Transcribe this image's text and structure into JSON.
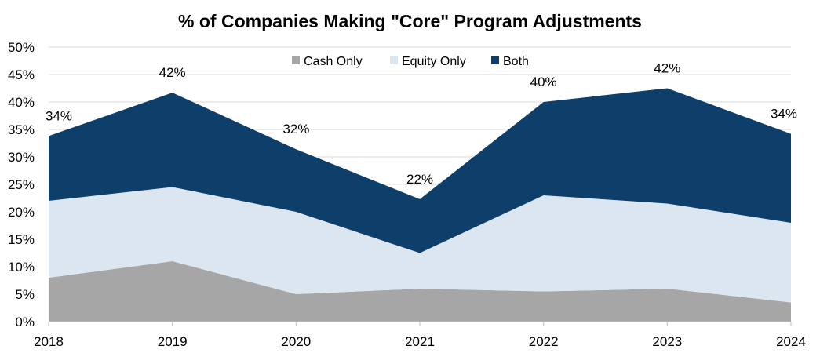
{
  "chart_data": {
    "type": "area",
    "stacked": true,
    "title": "% of Companies Making \"Core\" Program Adjustments",
    "xlabel": "",
    "ylabel": "",
    "categories": [
      "2018",
      "2019",
      "2020",
      "2021",
      "2022",
      "2023",
      "2024"
    ],
    "ylim": [
      0,
      50
    ],
    "yticks": [
      "0%",
      "5%",
      "10%",
      "15%",
      "20%",
      "25%",
      "30%",
      "35%",
      "40%",
      "45%",
      "50%"
    ],
    "grid": true,
    "legend_position": "top",
    "series": [
      {
        "name": "Cash Only",
        "color": "#a6a6a6",
        "values": [
          8,
          11,
          5,
          6,
          5.5,
          6,
          3.5
        ]
      },
      {
        "name": "Equity Only",
        "color": "#dce6f1",
        "values": [
          14,
          13.5,
          15,
          6.5,
          17.5,
          15.5,
          14.5
        ]
      },
      {
        "name": "Both",
        "color": "#0e3f6a",
        "values": [
          11.8,
          17.2,
          11.4,
          9.8,
          17,
          21,
          16.2
        ]
      }
    ],
    "total_labels": [
      "34%",
      "42%",
      "32%",
      "22%",
      "40%",
      "42%",
      "34%"
    ]
  }
}
